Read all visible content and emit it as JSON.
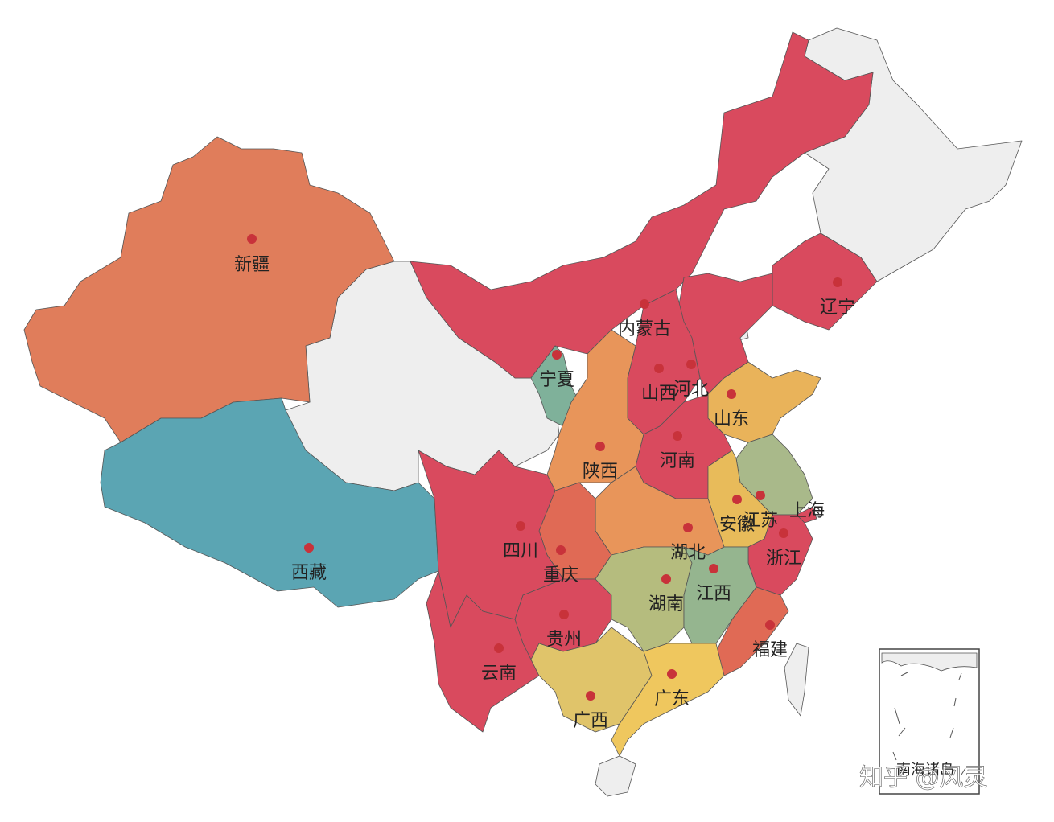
{
  "regions": [
    {
      "label": "新疆",
      "color": "#e07d5b"
    },
    {
      "label": "西藏",
      "color": "#5ba5b3"
    },
    {
      "label": "内蒙古",
      "color": "#d94a5e"
    },
    {
      "label": "辽宁",
      "color": "#d94a5e"
    },
    {
      "label": "河北",
      "color": "#d94a5e"
    },
    {
      "label": "山西",
      "color": "#d94a5e"
    },
    {
      "label": "宁夏",
      "color": "#7fb19a"
    },
    {
      "label": "陕西",
      "color": "#e8955a"
    },
    {
      "label": "山东",
      "color": "#e9b35a"
    },
    {
      "label": "河南",
      "color": "#d94a5e"
    },
    {
      "label": "江苏",
      "color": "#a9b98a"
    },
    {
      "label": "上海",
      "color": "#d94a5e"
    },
    {
      "label": "安徽",
      "color": "#e8bb5a"
    },
    {
      "label": "浙江",
      "color": "#d94a5e"
    },
    {
      "label": "湖北",
      "color": "#e8955a"
    },
    {
      "label": "重庆",
      "color": "#e06a55"
    },
    {
      "label": "四川",
      "color": "#d94a5e"
    },
    {
      "label": "贵州",
      "color": "#d94a5e"
    },
    {
      "label": "云南",
      "color": "#d94a5e"
    },
    {
      "label": "湖南",
      "color": "#b5bc7e"
    },
    {
      "label": "江西",
      "color": "#95b58f"
    },
    {
      "label": "福建",
      "color": "#e06a55"
    },
    {
      "label": "广西",
      "color": "#e0c46a"
    },
    {
      "label": "广东",
      "color": "#efc75e"
    }
  ],
  "inset_label": "南海诸岛",
  "watermark": "知乎 @风灵"
}
